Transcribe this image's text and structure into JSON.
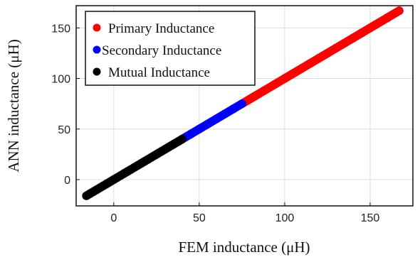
{
  "chart_data": {
    "type": "scatter",
    "title": "",
    "xlabel": "FEM inductance (μH)",
    "ylabel": "ANN inductance (μH)",
    "xlim": [
      -22,
      175
    ],
    "ylim": [
      -26,
      172
    ],
    "xticks": [
      0,
      50,
      100,
      150
    ],
    "yticks": [
      0,
      50,
      100,
      150
    ],
    "grid": true,
    "legend_position": "top-left",
    "series": [
      {
        "name": "Primary Inductance",
        "color": "#ff0000",
        "x": [
          76,
          82,
          88,
          95,
          100,
          105,
          110,
          115,
          120,
          125,
          130,
          135,
          140,
          145,
          150,
          153,
          160,
          167
        ],
        "y": [
          76,
          82,
          88,
          95,
          100,
          105,
          110,
          115,
          120,
          125,
          130,
          135,
          140,
          145,
          150,
          153,
          160,
          167
        ]
      },
      {
        "name": "Secondary Inductance",
        "color": "#0000ff",
        "x": [
          30,
          35,
          40,
          45,
          50,
          55,
          60,
          65,
          70,
          75
        ],
        "y": [
          30,
          35,
          40,
          45,
          50,
          55,
          60,
          65,
          70,
          75
        ]
      },
      {
        "name": "Mutual Inductance",
        "color": "#000000",
        "x": [
          -16,
          -14,
          -12,
          -10,
          -8,
          -6,
          -4,
          -2,
          0,
          2,
          4,
          6,
          8,
          10,
          12,
          14,
          16,
          18,
          20,
          22,
          24,
          26,
          28,
          30,
          32,
          34,
          36,
          38,
          40
        ],
        "y": [
          -16,
          -14,
          -12,
          -10,
          -8,
          -6,
          -4,
          -2,
          0,
          2,
          4,
          6,
          8,
          10,
          12,
          14,
          16,
          18,
          20,
          22,
          24,
          26,
          28,
          30,
          32,
          34,
          36,
          38,
          40
        ]
      }
    ]
  }
}
